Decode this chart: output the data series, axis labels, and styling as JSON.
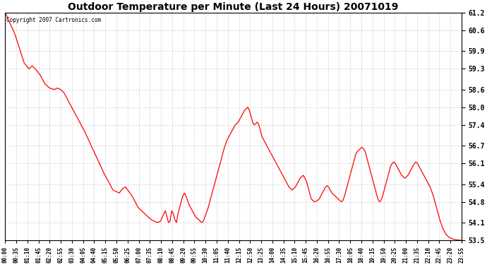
{
  "title": "Outdoor Temperature per Minute (Last 24 Hours) 20071019",
  "copyright_text": "Copyright 2007 Cartronics.com",
  "line_color": "#ff0000",
  "background_color": "#ffffff",
  "plot_bg_color": "#ffffff",
  "grid_color": "#bbbbbb",
  "yticks": [
    53.5,
    54.1,
    54.8,
    55.4,
    56.1,
    56.7,
    57.4,
    58.0,
    58.6,
    59.3,
    59.9,
    60.6,
    61.2
  ],
  "ylim": [
    53.5,
    61.2
  ],
  "xtick_labels": [
    "00:00",
    "00:35",
    "01:10",
    "01:45",
    "02:20",
    "02:55",
    "03:30",
    "04:05",
    "04:40",
    "05:15",
    "05:50",
    "06:25",
    "07:00",
    "07:35",
    "08:10",
    "08:45",
    "09:20",
    "09:55",
    "10:30",
    "11:05",
    "11:40",
    "12:15",
    "12:50",
    "13:25",
    "14:00",
    "14:35",
    "15:10",
    "15:45",
    "16:20",
    "16:55",
    "17:30",
    "18:05",
    "18:40",
    "19:15",
    "19:50",
    "20:25",
    "21:00",
    "21:35",
    "22:10",
    "22:45",
    "23:20",
    "23:55"
  ],
  "waypoints": [
    [
      0,
      61.2
    ],
    [
      30,
      60.5
    ],
    [
      60,
      59.5
    ],
    [
      75,
      59.3
    ],
    [
      85,
      59.4
    ],
    [
      95,
      59.3
    ],
    [
      110,
      59.1
    ],
    [
      125,
      58.8
    ],
    [
      140,
      58.65
    ],
    [
      155,
      58.6
    ],
    [
      165,
      58.65
    ],
    [
      175,
      58.6
    ],
    [
      185,
      58.5
    ],
    [
      200,
      58.2
    ],
    [
      220,
      57.8
    ],
    [
      250,
      57.2
    ],
    [
      280,
      56.5
    ],
    [
      310,
      55.8
    ],
    [
      340,
      55.2
    ],
    [
      360,
      55.1
    ],
    [
      370,
      55.25
    ],
    [
      380,
      55.3
    ],
    [
      390,
      55.15
    ],
    [
      400,
      55.0
    ],
    [
      410,
      54.8
    ],
    [
      420,
      54.6
    ],
    [
      430,
      54.5
    ],
    [
      440,
      54.4
    ],
    [
      450,
      54.3
    ],
    [
      460,
      54.2
    ],
    [
      470,
      54.15
    ],
    [
      480,
      54.1
    ],
    [
      490,
      54.15
    ],
    [
      500,
      54.4
    ],
    [
      505,
      54.5
    ],
    [
      510,
      54.3
    ],
    [
      515,
      54.1
    ],
    [
      520,
      54.15
    ],
    [
      525,
      54.5
    ],
    [
      530,
      54.4
    ],
    [
      535,
      54.2
    ],
    [
      540,
      54.1
    ],
    [
      545,
      54.4
    ],
    [
      550,
      54.6
    ],
    [
      555,
      54.8
    ],
    [
      560,
      55.0
    ],
    [
      565,
      55.1
    ],
    [
      570,
      55.0
    ],
    [
      575,
      54.85
    ],
    [
      580,
      54.7
    ],
    [
      585,
      54.6
    ],
    [
      590,
      54.5
    ],
    [
      595,
      54.4
    ],
    [
      600,
      54.3
    ],
    [
      610,
      54.2
    ],
    [
      615,
      54.15
    ],
    [
      620,
      54.1
    ],
    [
      625,
      54.15
    ],
    [
      630,
      54.3
    ],
    [
      640,
      54.6
    ],
    [
      650,
      55.0
    ],
    [
      660,
      55.4
    ],
    [
      670,
      55.8
    ],
    [
      680,
      56.2
    ],
    [
      690,
      56.6
    ],
    [
      700,
      56.9
    ],
    [
      710,
      57.1
    ],
    [
      715,
      57.2
    ],
    [
      720,
      57.3
    ],
    [
      725,
      57.4
    ],
    [
      730,
      57.45
    ],
    [
      735,
      57.5
    ],
    [
      740,
      57.6
    ],
    [
      745,
      57.7
    ],
    [
      750,
      57.8
    ],
    [
      755,
      57.9
    ],
    [
      760,
      57.95
    ],
    [
      765,
      58.0
    ],
    [
      770,
      57.9
    ],
    [
      775,
      57.7
    ],
    [
      780,
      57.5
    ],
    [
      785,
      57.4
    ],
    [
      790,
      57.45
    ],
    [
      795,
      57.5
    ],
    [
      800,
      57.4
    ],
    [
      805,
      57.2
    ],
    [
      810,
      57.0
    ],
    [
      820,
      56.8
    ],
    [
      830,
      56.6
    ],
    [
      840,
      56.4
    ],
    [
      850,
      56.2
    ],
    [
      860,
      56.0
    ],
    [
      870,
      55.8
    ],
    [
      880,
      55.6
    ],
    [
      885,
      55.5
    ],
    [
      890,
      55.4
    ],
    [
      895,
      55.3
    ],
    [
      900,
      55.25
    ],
    [
      905,
      55.2
    ],
    [
      910,
      55.25
    ],
    [
      915,
      55.3
    ],
    [
      920,
      55.4
    ],
    [
      925,
      55.5
    ],
    [
      930,
      55.6
    ],
    [
      935,
      55.65
    ],
    [
      940,
      55.7
    ],
    [
      945,
      55.6
    ],
    [
      950,
      55.5
    ],
    [
      955,
      55.3
    ],
    [
      960,
      55.1
    ],
    [
      965,
      54.9
    ],
    [
      970,
      54.85
    ],
    [
      975,
      54.8
    ],
    [
      985,
      54.85
    ],
    [
      990,
      54.9
    ],
    [
      995,
      55.0
    ],
    [
      1000,
      55.1
    ],
    [
      1010,
      55.3
    ],
    [
      1015,
      55.35
    ],
    [
      1020,
      55.3
    ],
    [
      1025,
      55.2
    ],
    [
      1030,
      55.1
    ],
    [
      1040,
      55.0
    ],
    [
      1050,
      54.9
    ],
    [
      1055,
      54.85
    ],
    [
      1060,
      54.8
    ],
    [
      1065,
      54.85
    ],
    [
      1070,
      55.0
    ],
    [
      1075,
      55.2
    ],
    [
      1080,
      55.4
    ],
    [
      1085,
      55.6
    ],
    [
      1090,
      55.8
    ],
    [
      1095,
      56.0
    ],
    [
      1100,
      56.2
    ],
    [
      1105,
      56.4
    ],
    [
      1110,
      56.5
    ],
    [
      1115,
      56.55
    ],
    [
      1120,
      56.6
    ],
    [
      1125,
      56.65
    ],
    [
      1130,
      56.6
    ],
    [
      1135,
      56.5
    ],
    [
      1140,
      56.3
    ],
    [
      1145,
      56.1
    ],
    [
      1150,
      55.9
    ],
    [
      1155,
      55.7
    ],
    [
      1160,
      55.5
    ],
    [
      1165,
      55.3
    ],
    [
      1170,
      55.1
    ],
    [
      1175,
      54.9
    ],
    [
      1180,
      54.8
    ],
    [
      1185,
      54.85
    ],
    [
      1190,
      55.0
    ],
    [
      1195,
      55.2
    ],
    [
      1200,
      55.4
    ],
    [
      1205,
      55.6
    ],
    [
      1210,
      55.8
    ],
    [
      1215,
      56.0
    ],
    [
      1220,
      56.1
    ],
    [
      1225,
      56.15
    ],
    [
      1230,
      56.1
    ],
    [
      1235,
      56.0
    ],
    [
      1240,
      55.9
    ],
    [
      1245,
      55.8
    ],
    [
      1250,
      55.7
    ],
    [
      1255,
      55.65
    ],
    [
      1260,
      55.6
    ],
    [
      1265,
      55.65
    ],
    [
      1270,
      55.7
    ],
    [
      1275,
      55.8
    ],
    [
      1280,
      55.9
    ],
    [
      1285,
      56.0
    ],
    [
      1290,
      56.1
    ],
    [
      1295,
      56.15
    ],
    [
      1300,
      56.1
    ],
    [
      1305,
      56.0
    ],
    [
      1310,
      55.9
    ],
    [
      1315,
      55.8
    ],
    [
      1320,
      55.7
    ],
    [
      1325,
      55.6
    ],
    [
      1330,
      55.5
    ],
    [
      1340,
      55.3
    ],
    [
      1350,
      55.0
    ],
    [
      1360,
      54.6
    ],
    [
      1370,
      54.2
    ],
    [
      1380,
      53.9
    ],
    [
      1390,
      53.7
    ],
    [
      1400,
      53.6
    ],
    [
      1410,
      53.55
    ],
    [
      1420,
      53.52
    ],
    [
      1439,
      53.5
    ]
  ]
}
